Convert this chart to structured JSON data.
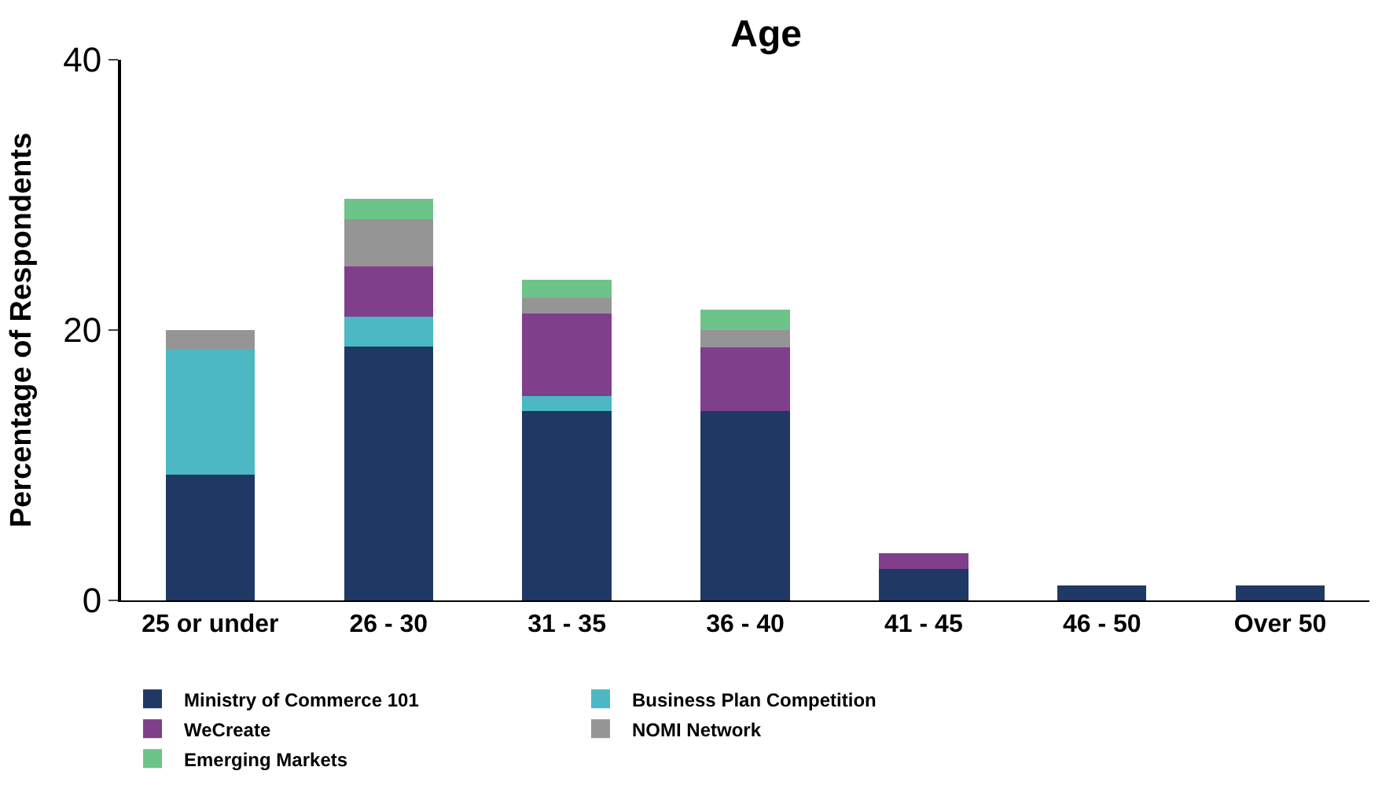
{
  "chart_data": {
    "type": "bar",
    "title": "Age",
    "ylabel": "Percentage of Respondents",
    "categories": [
      "25 or under",
      "26 - 30",
      "31 - 35",
      "36 - 40",
      "41 - 45",
      "46 - 50",
      "Over 50"
    ],
    "stacked": true,
    "ylim": [
      0,
      40
    ],
    "yticks": [
      0,
      20,
      40
    ],
    "legend": "bottom",
    "series": [
      {
        "name": "Ministry of Commerce 101",
        "color": "#203864",
        "values": [
          9.3,
          18.8,
          14.0,
          14.0,
          2.3,
          1.1,
          1.1
        ]
      },
      {
        "name": "Business Plan Competition",
        "color": "#4bb8c4",
        "values": [
          9.3,
          2.2,
          1.1,
          null,
          null,
          null,
          null
        ]
      },
      {
        "name": "WeCreate",
        "color": "#803f8a",
        "values": [
          null,
          3.7,
          6.1,
          4.7,
          1.2,
          null,
          null
        ]
      },
      {
        "name": "NOMI Network",
        "color": "#959595",
        "values": [
          1.4,
          3.5,
          1.2,
          1.3,
          null,
          null,
          null
        ]
      },
      {
        "name": "Emerging Markets",
        "color": "#6cc488",
        "values": [
          null,
          1.5,
          1.3,
          1.5,
          null,
          null,
          null
        ]
      }
    ]
  }
}
